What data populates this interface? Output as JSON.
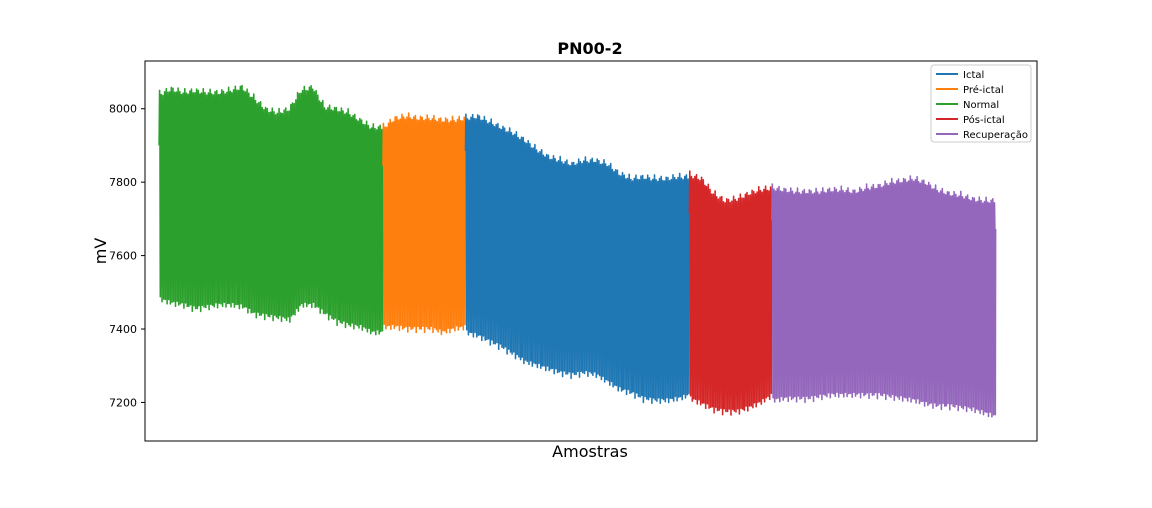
{
  "chart_data": {
    "type": "line",
    "title": "PN00-2",
    "xlabel": "Amostras",
    "ylabel": "mV",
    "ylim": [
      7095,
      8130
    ],
    "yticks": [
      7200,
      7400,
      7600,
      7800,
      8000
    ],
    "x_ticks_shown": false,
    "grid": false,
    "legend_position": "top-right",
    "series": [
      {
        "name": "Normal",
        "color": "#2ca02c",
        "x_range": [
          0,
          19
        ],
        "baseline": [
          7900,
          7945,
          7935,
          7950,
          7940,
          7935,
          7945,
          7965,
          7920,
          7870,
          7830,
          7830,
          7870,
          7920,
          7890,
          7890,
          7900,
          7880,
          7860,
          7840
        ],
        "upper": [
          8050,
          8065,
          8055,
          8060,
          8055,
          8055,
          8060,
          8070,
          8040,
          8010,
          8000,
          8010,
          8060,
          8070,
          8015,
          8010,
          8000,
          7980,
          7960,
          7960
        ],
        "lower": [
          7470,
          7460,
          7455,
          7445,
          7450,
          7455,
          7455,
          7450,
          7430,
          7425,
          7420,
          7415,
          7455,
          7455,
          7430,
          7410,
          7400,
          7395,
          7380,
          7380
        ]
      },
      {
        "name": "Pré-ictal",
        "color": "#ff7f0e",
        "x_range": [
          19,
          26
        ],
        "baseline": [
          7840,
          7875,
          7880,
          7875,
          7870,
          7870,
          7870,
          7880
        ],
        "upper": [
          7960,
          7985,
          7990,
          7985,
          7985,
          7980,
          7980,
          7985
        ],
        "lower": [
          7395,
          7395,
          7390,
          7390,
          7390,
          7380,
          7390,
          7395
        ]
      },
      {
        "name": "Ictal",
        "color": "#1f77b4",
        "x_range": [
          26,
          45
        ],
        "baseline": [
          7880,
          7880,
          7875,
          7865,
          7850,
          7830,
          7810,
          7790,
          7775,
          7770,
          7775,
          7765,
          7745,
          7725,
          7715,
          7715,
          7710,
          7715,
          7715,
          7715
        ],
        "upper": [
          7985,
          7990,
          7975,
          7960,
          7945,
          7925,
          7900,
          7880,
          7870,
          7860,
          7870,
          7870,
          7860,
          7835,
          7820,
          7825,
          7820,
          7820,
          7825,
          7825
        ],
        "lower": [
          7380,
          7370,
          7355,
          7340,
          7320,
          7300,
          7290,
          7280,
          7270,
          7265,
          7270,
          7265,
          7245,
          7225,
          7215,
          7200,
          7195,
          7195,
          7200,
          7210
        ]
      },
      {
        "name": "Pós-ictal",
        "color": "#d62728",
        "x_range": [
          45,
          52
        ],
        "baseline": [
          7715,
          7700,
          7640,
          7580,
          7560,
          7600,
          7660,
          7700
        ],
        "upper": [
          7830,
          7820,
          7780,
          7760,
          7765,
          7780,
          7790,
          7795
        ],
        "lower": [
          7200,
          7185,
          7170,
          7165,
          7165,
          7175,
          7190,
          7210
        ]
      },
      {
        "name": "Recuperação",
        "color": "#9467bd",
        "x_range": [
          52,
          71
        ],
        "baseline": [
          7700,
          7705,
          7700,
          7700,
          7710,
          7700,
          7690,
          7695,
          7700,
          7705,
          7710,
          7720,
          7725,
          7720,
          7700,
          7690,
          7685,
          7680,
          7670,
          7665
        ],
        "upper": [
          7795,
          7790,
          7785,
          7785,
          7785,
          7790,
          7790,
          7785,
          7795,
          7800,
          7810,
          7815,
          7820,
          7810,
          7790,
          7780,
          7775,
          7765,
          7760,
          7760
        ],
        "lower": [
          7195,
          7200,
          7200,
          7200,
          7205,
          7210,
          7210,
          7210,
          7210,
          7210,
          7205,
          7200,
          7195,
          7185,
          7180,
          7180,
          7175,
          7170,
          7160,
          7150
        ]
      }
    ]
  }
}
